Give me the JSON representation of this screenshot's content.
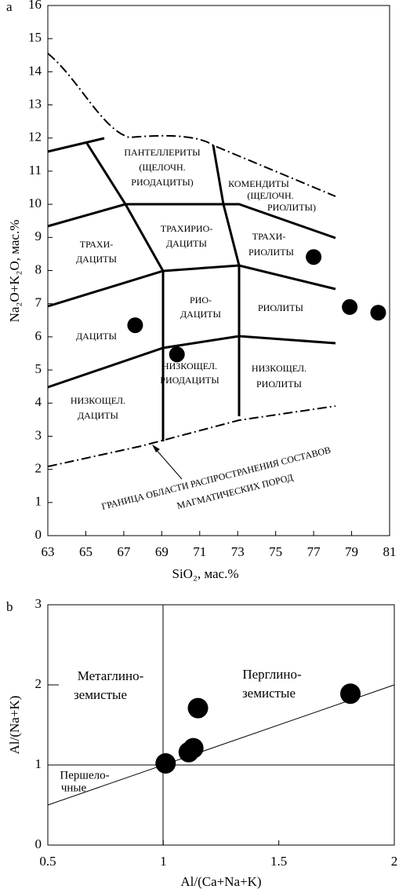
{
  "chart_data": [
    {
      "type": "scatter",
      "panel": "a",
      "xlabel": "SiO₂, мас.%",
      "ylabel": "Na₂O+K₂O, мас.%",
      "xlim": [
        63,
        81
      ],
      "xticks": [
        63,
        65,
        67,
        69,
        71,
        73,
        75,
        77,
        79,
        81
      ],
      "ylim": [
        0,
        16
      ],
      "yticks": [
        0,
        1,
        2,
        3,
        4,
        5,
        6,
        7,
        8,
        9,
        10,
        11,
        12,
        13,
        14,
        15,
        16
      ],
      "color": "#000000",
      "x": [
        67.6,
        69.8,
        77.0,
        78.9,
        80.4
      ],
      "values": [
        6.35,
        5.47,
        8.41,
        6.9,
        6.73
      ],
      "annotations": [
        "ПАНТЕЛЛЕРИТЫ",
        "(ЩЕЛОЧН.",
        "РИОДАЦИТЫ)",
        "КОМЕНДИТЫ",
        "(ЩЕЛОЧН.",
        "РИОЛИТЫ)",
        "ТРАХИ-",
        "ДАЦИТЫ",
        "ТРАХИРИО-",
        "ДАЦИТЫ",
        "ТРАХИ-",
        "РИОЛИТЫ",
        "РИО-",
        "ДАЦИТЫ",
        "РИОЛИТЫ",
        "ДАЦИТЫ",
        "НИЗКОЩЕЛ.",
        "РИОДАЦИТЫ",
        "НИЗКОЩЕЛ.",
        "РИОЛИТЫ",
        "НИЗКОЩЕЛ.",
        "ДАЦИТЫ",
        "ГРАНИЦА ОБЛАСТИ РАСПРОСТРАНЕНИЯ СОСТАВОВ",
        "МАГМАТИЧЕСКИХ ПОРОД"
      ]
    },
    {
      "type": "scatter",
      "panel": "b",
      "xlabel": "Al/(Ca+Na+K)",
      "ylabel": "Al/(Na+K)",
      "xlim": [
        0.5,
        2
      ],
      "xticks": [
        0.5,
        1,
        1.5,
        2
      ],
      "ylim": [
        0,
        3
      ],
      "yticks": [
        0,
        1,
        2,
        3
      ],
      "color": "#000000",
      "x": [
        1.01,
        1.11,
        1.13,
        1.15,
        1.81
      ],
      "values": [
        1.02,
        1.16,
        1.21,
        1.71,
        1.89
      ],
      "annotations": [
        "Метаглино-",
        "земистые",
        "Перглино-",
        "земистые",
        "Першело-",
        "чные"
      ]
    }
  ]
}
